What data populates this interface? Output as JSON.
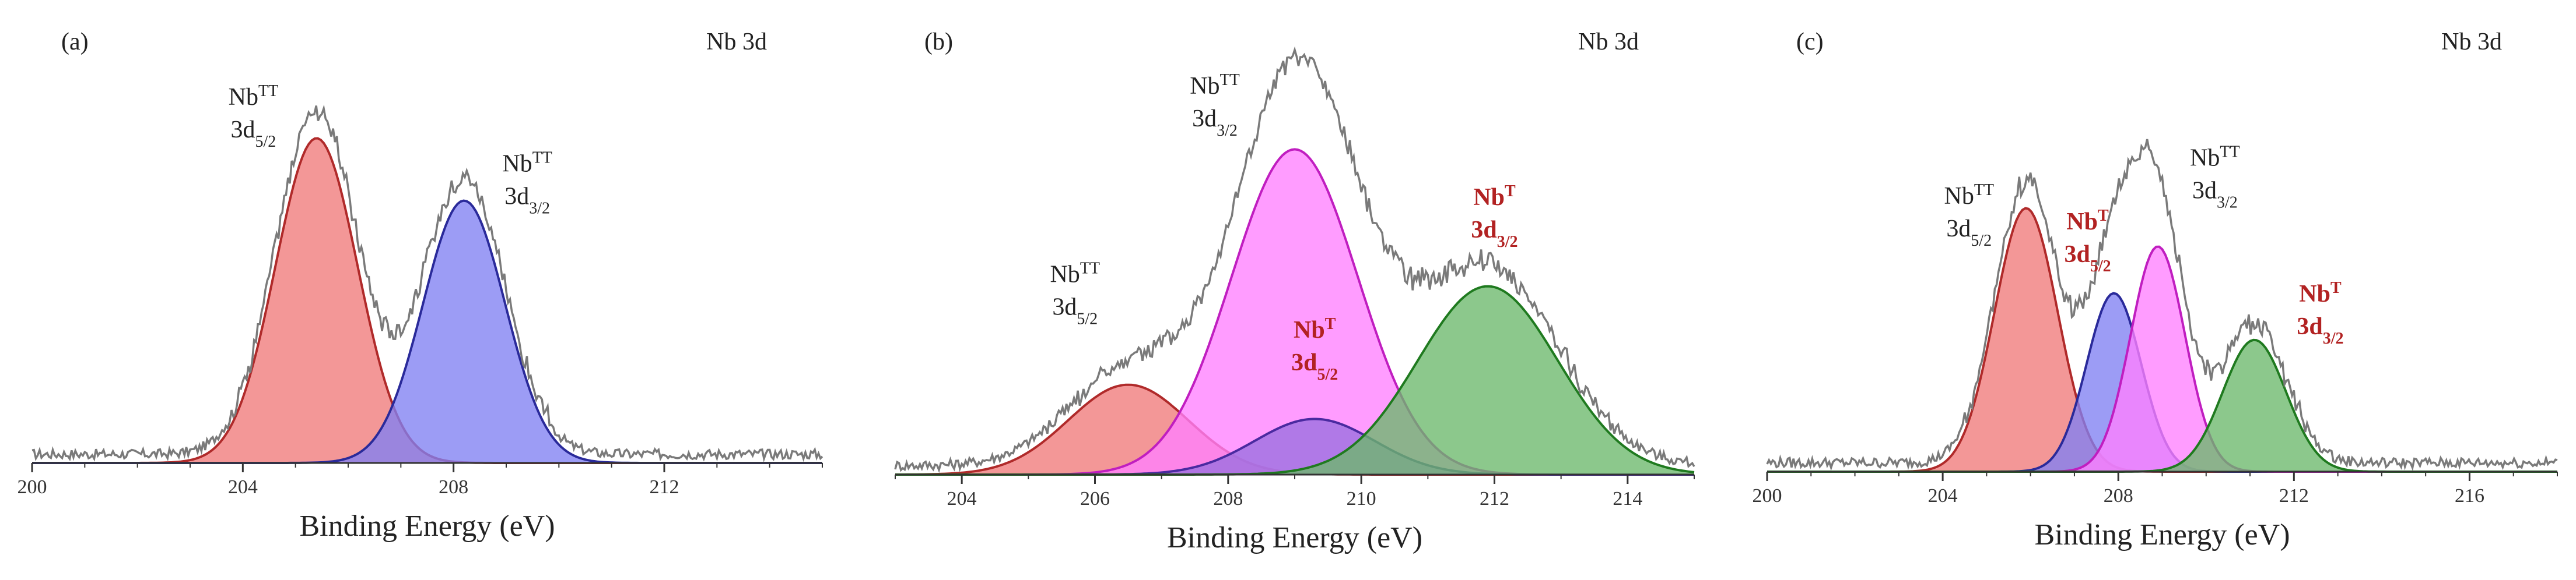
{
  "chart_data": [
    {
      "type": "area",
      "panel_label": "(a)",
      "element_label": "Nb 3d",
      "xlabel": "Binding Energy (eV)",
      "xlim": [
        200,
        215
      ],
      "ylim": [
        0,
        1
      ],
      "xticks": [
        200,
        204,
        208,
        212
      ],
      "envelope": {
        "color": "#7a7a7a",
        "noise": 0.012,
        "baseline": 0.02
      },
      "peaks": [
        {
          "center": 205.4,
          "height": 0.78,
          "sigma": 0.78,
          "fill": "#f07a7a",
          "stroke": "#b02a2a"
        },
        {
          "center": 208.2,
          "height": 0.63,
          "sigma": 0.78,
          "fill": "#8080f2",
          "stroke": "#2a2a9a"
        }
      ],
      "annotations": [
        {
          "base": "Nb",
          "sup": "TT",
          "line2": "3d",
          "sub": "5/2",
          "color": "#222222",
          "bold": false,
          "x": 204.2,
          "y": 0.86
        },
        {
          "base": "Nb",
          "sup": "TT",
          "line2": "3d",
          "sub": "3/2",
          "color": "#222222",
          "bold": false,
          "x": 209.4,
          "y": 0.7
        }
      ]
    },
    {
      "type": "area",
      "panel_label": "(b)",
      "element_label": "Nb 3d",
      "xlabel": "Binding Energy (eV)",
      "xlim": [
        203,
        215
      ],
      "ylim": [
        0,
        1
      ],
      "xticks": [
        204,
        206,
        208,
        210,
        212,
        214
      ],
      "envelope": {
        "color": "#7a7a7a",
        "noise": 0.012,
        "baseline": 0.02
      },
      "peaks": [
        {
          "center": 206.5,
          "height": 0.21,
          "sigma": 0.9,
          "fill": "#f07a7a",
          "stroke": "#b02a2a"
        },
        {
          "center": 209.0,
          "height": 0.76,
          "sigma": 0.95,
          "fill": "#ff80ff",
          "stroke": "#c01ec0"
        },
        {
          "center": 209.3,
          "height": 0.13,
          "sigma": 0.9,
          "fill": "#9a70e0",
          "stroke": "#4a2aa0"
        },
        {
          "center": 211.9,
          "height": 0.44,
          "sigma": 1.05,
          "fill": "#6cb86c",
          "stroke": "#1f7a1f"
        }
      ],
      "annotations": [
        {
          "base": "Nb",
          "sup": "TT",
          "line2": "3d",
          "sub": "3/2",
          "color": "#222222",
          "bold": false,
          "x": 207.8,
          "y": 0.89
        },
        {
          "base": "Nb",
          "sup": "TT",
          "line2": "3d",
          "sub": "5/2",
          "color": "#222222",
          "bold": false,
          "x": 205.7,
          "y": 0.45
        },
        {
          "base": "Nb",
          "sup": "T",
          "line2": "3d",
          "sub": "5/2",
          "color": "#b22222",
          "bold": true,
          "x": 209.3,
          "y": 0.32
        },
        {
          "base": "Nb",
          "sup": "T",
          "line2": "3d",
          "sub": "3/2",
          "color": "#b22222",
          "bold": true,
          "x": 212.0,
          "y": 0.63
        }
      ]
    },
    {
      "type": "area",
      "panel_label": "(c)",
      "element_label": "Nb 3d",
      "xlabel": "Binding Energy (eV)",
      "xlim": [
        200,
        218
      ],
      "ylim": [
        0,
        1
      ],
      "xticks": [
        200,
        204,
        208,
        212,
        216
      ],
      "envelope": {
        "color": "#7a7a7a",
        "noise": 0.012,
        "baseline": 0.02
      },
      "peaks": [
        {
          "center": 205.9,
          "height": 0.62,
          "sigma": 0.72,
          "fill": "#f07a7a",
          "stroke": "#b02a2a"
        },
        {
          "center": 207.9,
          "height": 0.42,
          "sigma": 0.62,
          "fill": "#8080f2",
          "stroke": "#2a2a9a"
        },
        {
          "center": 208.9,
          "height": 0.53,
          "sigma": 0.62,
          "fill": "#ff80ff",
          "stroke": "#c01ec0"
        },
        {
          "center": 211.1,
          "height": 0.31,
          "sigma": 0.72,
          "fill": "#6cb86c",
          "stroke": "#1f7a1f"
        }
      ],
      "annotations": [
        {
          "base": "Nb",
          "sup": "TT",
          "line2": "3d",
          "sub": "5/2",
          "color": "#222222",
          "bold": false,
          "x": 204.6,
          "y": 0.63
        },
        {
          "base": "Nb",
          "sup": "T",
          "line2": "3d",
          "sub": "5/2",
          "color": "#b22222",
          "bold": true,
          "x": 207.3,
          "y": 0.57
        },
        {
          "base": "Nb",
          "sup": "TT",
          "line2": "3d",
          "sub": "3/2",
          "color": "#222222",
          "bold": false,
          "x": 210.2,
          "y": 0.72
        },
        {
          "base": "Nb",
          "sup": "T",
          "line2": "3d",
          "sub": "3/2",
          "color": "#b22222",
          "bold": true,
          "x": 212.6,
          "y": 0.4
        }
      ]
    }
  ]
}
